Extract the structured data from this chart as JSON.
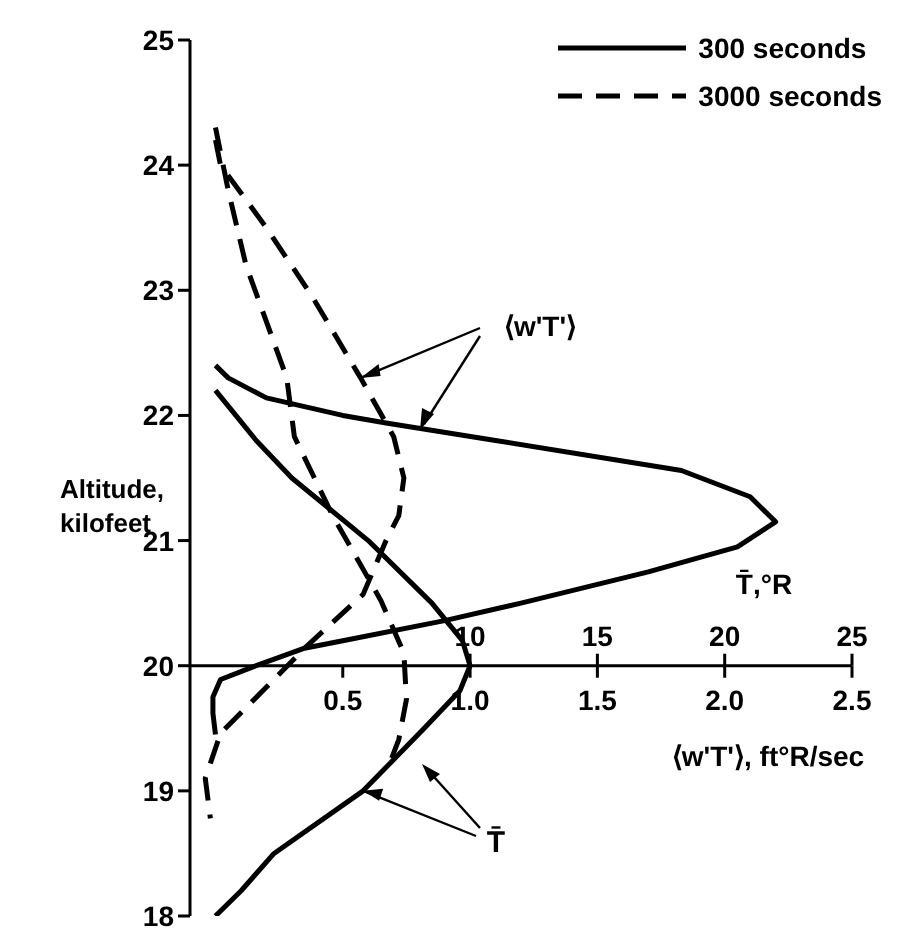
{
  "chart_data": {
    "type": "line",
    "ylabel": "Altitude, kilofeet",
    "xlabel": "⟨w'T'⟩, ft°R/sec",
    "x2label": "T̄,°R",
    "marker": "none",
    "legend": "top right",
    "grid": false,
    "ylim": [
      18,
      25
    ],
    "yticks": [
      18,
      19,
      20,
      21,
      22,
      23,
      24,
      25
    ],
    "xlim": [
      -0.1,
      2.5
    ],
    "xticks": [
      {
        "value": 0.5,
        "label": "0.5"
      },
      {
        "value": 1,
        "label": "1.0"
      },
      {
        "value": 1.5,
        "label": "1.5"
      },
      {
        "value": 2,
        "label": "2.0"
      },
      {
        "value": 2.5,
        "label": "2.5"
      }
    ],
    "x2lim": [
      -1,
      25
    ],
    "x2ticks": [
      10,
      15,
      20,
      25
    ],
    "annotations": [
      {
        "text": "⟨w'T'⟩",
        "x": 0.57,
        "y": 22.3
      },
      {
        "text": "T̄",
        "x": 0.58,
        "y": 19.0
      }
    ],
    "series": [
      {
        "name": "300 seconds",
        "color": "#000000",
        "line_style": "solid",
        "x": [
          0,
          0.05,
          0.2,
          0.5,
          0.67,
          1.1,
          1.83,
          2.1,
          2.2,
          2.05,
          1.7,
          1.2,
          0.9,
          0.5,
          0.35,
          0.16,
          0.02,
          -0.01,
          -0.01,
          0
        ],
        "values": [
          22.4,
          22.3,
          22.14,
          22.0,
          21.94,
          21.8,
          21.56,
          21.35,
          21.15,
          20.95,
          20.75,
          20.5,
          20.36,
          20.2,
          20.14,
          20.0,
          19.89,
          19.75,
          19.62,
          19.45
        ]
      },
      {
        "color": "#000000",
        "line_style": "solid",
        "axis": "x2",
        "x": [
          0,
          0.8,
          1.6,
          3.0,
          6.0,
          8.5,
          9.7,
          10.0,
          9.6,
          8.2,
          5.8,
          2.3,
          1.0,
          0
        ],
        "values": [
          22.2,
          22.0,
          21.8,
          21.5,
          21.0,
          20.5,
          20.2,
          20.0,
          19.8,
          19.5,
          19.0,
          18.5,
          18.2,
          18.0
        ]
      },
      {
        "name": "3000 seconds",
        "color": "#000000",
        "line_style": "dashed",
        "x": [
          0,
          0.02,
          0.2,
          0.38,
          0.57,
          0.7,
          0.74,
          0.72,
          0.67,
          0.58,
          0.35,
          0.23,
          0.02,
          -0.04,
          -0.02
        ],
        "values": [
          24.2,
          24.0,
          23.5,
          22.95,
          22.3,
          21.83,
          21.5,
          21.2,
          21.0,
          20.57,
          20.14,
          19.89,
          19.46,
          19.1,
          18.78
        ]
      },
      {
        "color": "#000000",
        "line_style": "dashed",
        "axis": "x2",
        "x": [
          0,
          0.5,
          1.2,
          2.8,
          3.1,
          4.6,
          6.5,
          7.4,
          7.5,
          7.2,
          6.9
        ],
        "values": [
          24.3,
          23.8,
          23.2,
          22.3,
          21.83,
          21.2,
          20.52,
          20.1,
          19.73,
          19.41,
          19.25
        ]
      }
    ]
  }
}
